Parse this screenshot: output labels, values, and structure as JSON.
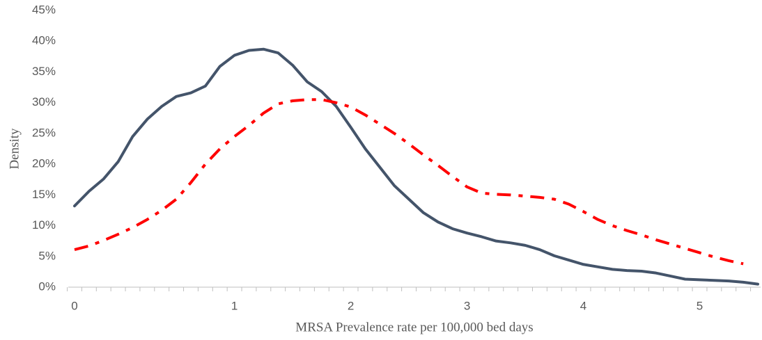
{
  "chart_data": {
    "type": "line",
    "x_label": "MRSA Prevalence rate per 100,000 bed days",
    "y_label": "Density",
    "categories": [
      "0",
      null,
      null,
      null,
      null,
      null,
      null,
      null,
      null,
      null,
      null,
      "1",
      null,
      null,
      null,
      null,
      null,
      null,
      null,
      "2",
      null,
      null,
      null,
      null,
      null,
      null,
      null,
      "3",
      null,
      null,
      null,
      null,
      null,
      null,
      null,
      "4",
      null,
      null,
      null,
      null,
      null,
      null,
      null,
      "5",
      null,
      null,
      null,
      null
    ],
    "series": [
      {
        "color": "#44546a",
        "style": "solid",
        "values": [
          13.2,
          15.6,
          17.6,
          20.4,
          24.5,
          27.3,
          29.4,
          31.0,
          31.6,
          32.7,
          35.9,
          37.7,
          38.5,
          38.7,
          38.1,
          36.1,
          33.4,
          31.8,
          29.4,
          26.0,
          22.5,
          19.5,
          16.5,
          14.3,
          12.1,
          10.6,
          9.5,
          8.8,
          8.2,
          7.5,
          7.2,
          6.8,
          6.1,
          5.1,
          4.4,
          3.7,
          3.3,
          2.9,
          2.7,
          2.6,
          2.3,
          1.8,
          1.3,
          1.2,
          1.1,
          1.0,
          0.8,
          0.5
        ]
      },
      {
        "color": "#ff0000",
        "style": "dashdot",
        "values": [
          6.1,
          6.7,
          7.6,
          8.6,
          9.7,
          11.0,
          12.5,
          14.3,
          17.0,
          20.0,
          22.5,
          24.5,
          26.3,
          28.3,
          29.8,
          30.3,
          30.5,
          30.5,
          30.0,
          29.3,
          28.0,
          26.5,
          25.0,
          23.3,
          21.5,
          19.8,
          18.0,
          16.3,
          15.3,
          15.1,
          15.0,
          14.8,
          14.6,
          14.3,
          13.5,
          12.3,
          11.0,
          10.0,
          9.2,
          8.5,
          7.7,
          7.0,
          6.3,
          5.6,
          4.9,
          4.3,
          3.8,
          null
        ]
      }
    ],
    "ylim": [
      0,
      45
    ],
    "yticks": [
      {
        "value": 0,
        "label": "0%"
      },
      {
        "value": 5,
        "label": "5%"
      },
      {
        "value": 10,
        "label": "10%"
      },
      {
        "value": 15,
        "label": "15%"
      },
      {
        "value": 20,
        "label": "20%"
      },
      {
        "value": 25,
        "label": "25%"
      },
      {
        "value": 30,
        "label": "30%"
      },
      {
        "value": 35,
        "label": "35%"
      },
      {
        "value": 40,
        "label": "40%"
      },
      {
        "value": 45,
        "label": "45%"
      }
    ],
    "grid": false
  }
}
